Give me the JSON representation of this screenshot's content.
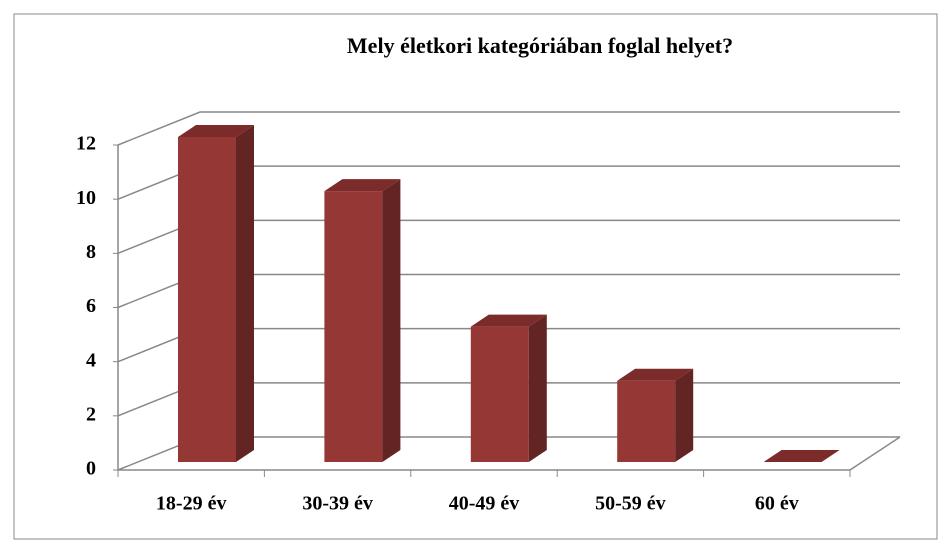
{
  "chart_data": {
    "type": "bar3d",
    "title": "Mely életkori kategóriában foglal helyet?",
    "categories": [
      "18-29 év",
      "30-39 év",
      "40-49 év",
      "50-59 év",
      "60 év"
    ],
    "values": [
      12,
      10,
      5,
      3,
      0
    ],
    "color": "#953735",
    "ylim": [
      0,
      12
    ],
    "yticks": [
      0,
      2,
      4,
      6,
      8,
      10,
      12
    ],
    "grid": true
  }
}
